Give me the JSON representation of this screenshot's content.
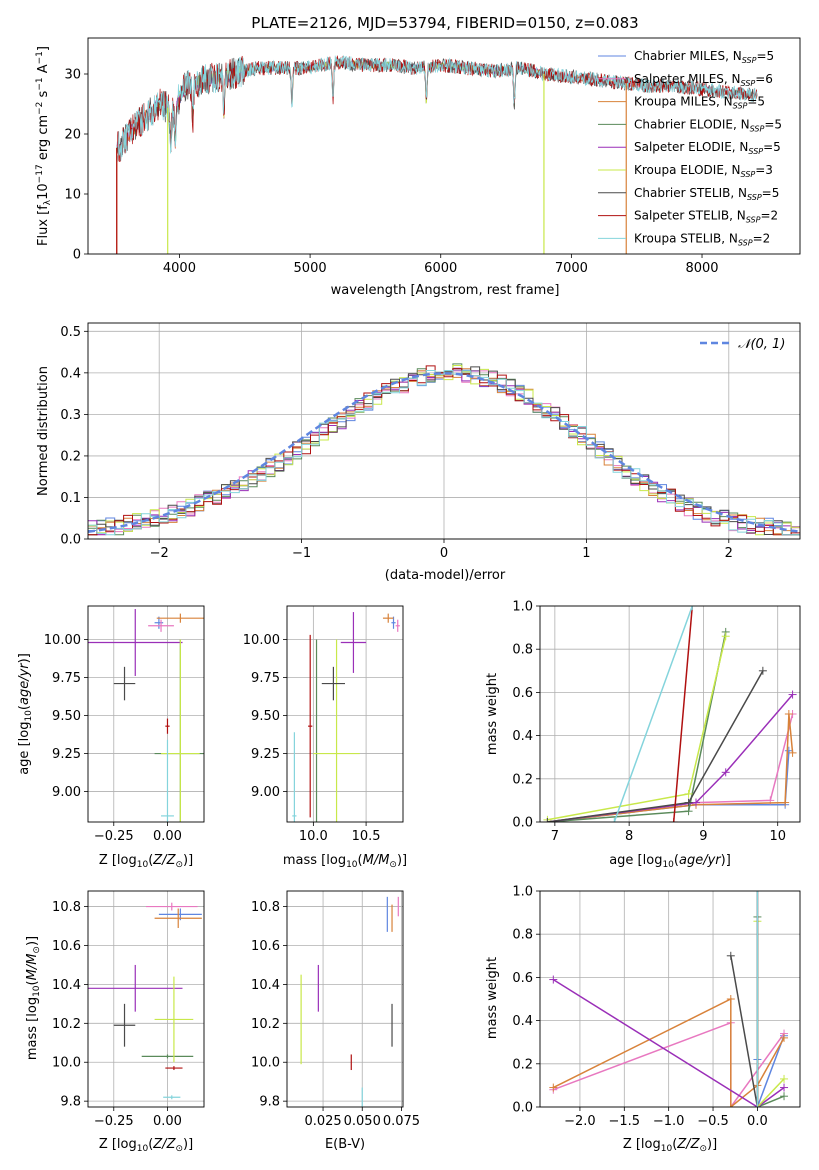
{
  "figure_title": "PLATE=2126, MJD=53794, FIBERID=0150, z=0.083",
  "colors": {
    "Chabrier MILES": "#5f86e0",
    "Salpeter MILES": "#e878c0",
    "Kroupa MILES": "#d8823a",
    "Chabrier ELODIE": "#5a8a5a",
    "Salpeter ELODIE": "#9a2fb8",
    "Kroupa ELODIE": "#c8e84a",
    "Chabrier STELIB": "#4a4a4a",
    "Salpeter STELIB": "#b01010",
    "Kroupa STELIB": "#84d4dc"
  },
  "chart_data": [
    {
      "id": "spectrum",
      "type": "line",
      "xlabel": "wavelength [Angstrom, rest frame]",
      "ylabel": "Flux [f_λ 10^-17 erg cm^-2 s^-1 A^-1]",
      "xlim": [
        3300,
        8750
      ],
      "ylim": [
        0,
        36
      ],
      "xticks": [
        4000,
        5000,
        6000,
        7000,
        8000
      ],
      "yticks": [
        0,
        10,
        20,
        30
      ],
      "legend_position": "right",
      "legend": [
        {
          "name": "Chabrier MILES",
          "nssp": "5"
        },
        {
          "name": "Salpeter MILES",
          "nssp": "6"
        },
        {
          "name": "Kroupa MILES",
          "nssp": "5"
        },
        {
          "name": "Chabrier ELODIE",
          "nssp": "5"
        },
        {
          "name": "Salpeter ELODIE",
          "nssp": "5"
        },
        {
          "name": "Kroupa ELODIE",
          "nssp": "3"
        },
        {
          "name": "Chabrier STELIB",
          "nssp": "5"
        },
        {
          "name": "Salpeter STELIB",
          "nssp": "2"
        },
        {
          "name": "Kroupa STELIB",
          "nssp": "2"
        }
      ],
      "series": {
        "x": [
          3550,
          3650,
          3750,
          3850,
          3950,
          4050,
          4200,
          4400,
          4600,
          4800,
          5000,
          5200,
          5400,
          5600,
          5800,
          6000,
          6200,
          6400,
          6600,
          6800,
          7000,
          7200,
          7400,
          7600,
          7800,
          8000,
          8200,
          8400
        ],
        "y": [
          18,
          21,
          23,
          25,
          24,
          28,
          29,
          30,
          31,
          31,
          31,
          32,
          31.5,
          31.5,
          31,
          31.5,
          31,
          30.5,
          31,
          30,
          29.5,
          29,
          28.5,
          28,
          28,
          27.5,
          27,
          26.5
        ]
      },
      "absorption_lines": [
        3933,
        3968,
        4102,
        4340,
        4861,
        5175,
        5890,
        6563
      ],
      "edge_drops": [
        {
          "series": "Kroupa MILES",
          "x": 3520
        },
        {
          "series": "Kroupa MILES",
          "x": 7420
        },
        {
          "series": "Kroupa ELODIE",
          "x": 3910
        },
        {
          "series": "Kroupa ELODIE",
          "x": 6790
        },
        {
          "series": "Salpeter STELIB",
          "x": 3520
        }
      ]
    },
    {
      "id": "residuals",
      "type": "line",
      "xlabel": "(data-model)/error",
      "ylabel": "Normed distribution",
      "xlim": [
        -2.5,
        2.5
      ],
      "ylim": [
        0,
        0.52
      ],
      "xticks": [
        -2,
        -1,
        0,
        1,
        2
      ],
      "yticks": [
        0.0,
        0.1,
        0.2,
        0.3,
        0.4,
        0.5
      ],
      "grid": true,
      "legend_position": "top-right",
      "legend": [
        "𝒩(0, 1)"
      ],
      "bin_width": 0.1,
      "bins_start": -2.5,
      "step_shape": [
        0.025,
        0.028,
        0.032,
        0.036,
        0.04,
        0.045,
        0.05,
        0.056,
        0.063,
        0.07,
        0.078,
        0.087,
        0.096,
        0.106,
        0.117,
        0.128,
        0.14,
        0.153,
        0.167,
        0.181,
        0.195,
        0.21,
        0.226,
        0.242,
        0.258,
        0.275,
        0.292,
        0.309,
        0.326,
        0.343,
        0.36,
        0.375,
        0.39,
        0.402,
        0.414,
        0.425,
        0.434,
        0.442,
        0.448,
        0.452,
        0.454,
        0.455,
        0.452,
        0.448,
        0.442,
        0.434,
        0.424,
        0.413,
        0.4,
        0.386,
        0.371,
        0.355,
        0.338,
        0.32,
        0.302,
        0.283,
        0.264,
        0.245,
        0.226,
        0.207,
        0.189,
        0.172,
        0.155,
        0.14,
        0.125,
        0.112,
        0.099,
        0.088,
        0.078,
        0.069,
        0.061,
        0.054,
        0.048,
        0.043,
        0.039,
        0.035,
        0.032,
        0.03,
        0.028,
        0.027
      ],
      "normal_curve": {
        "mean": 0,
        "sigma": 1
      }
    },
    {
      "id": "age-vs-Z",
      "type": "scatter",
      "xlabel": "Z [log10(Z/Z⊙)]",
      "ylabel": "age  [log10(age/yr)]",
      "xlim": [
        -0.37,
        0.17
      ],
      "ylim": [
        8.8,
        10.22
      ],
      "xticks": [
        -0.25,
        0.0
      ],
      "xtick_labels": [
        "−0.25",
        "0.00"
      ],
      "yticks": [
        9.0,
        9.25,
        9.5,
        9.75,
        10.0
      ],
      "ytick_labels": [
        "9.00",
        "9.25",
        "9.50",
        "9.75",
        "10.00"
      ],
      "grid": true,
      "points": [
        {
          "series": "Chabrier MILES",
          "x": -0.04,
          "y": 10.11,
          "xerr": 0.02,
          "yerr": 0.04
        },
        {
          "series": "Salpeter MILES",
          "x": -0.03,
          "y": 10.09,
          "xerr": 0.06,
          "yerr": 0.04
        },
        {
          "series": "Kroupa MILES",
          "x": 0.06,
          "y": 10.14,
          "xerr": 0.11,
          "yerr": 0.03
        },
        {
          "series": "Chabrier ELODIE",
          "x": 0.06,
          "y": 9.25,
          "xerr": 0.12,
          "yerr": 0.75
        },
        {
          "series": "Salpeter ELODIE",
          "x": -0.15,
          "y": 9.98,
          "xerr": 0.22,
          "yerr": 0.22
        },
        {
          "series": "Kroupa ELODIE",
          "x": 0.06,
          "y": 9.25,
          "xerr": 0.09,
          "yerr": 0.75
        },
        {
          "series": "Chabrier STELIB",
          "x": -0.2,
          "y": 9.71,
          "xerr": 0.05,
          "yerr": 0.11
        },
        {
          "series": "Salpeter STELIB",
          "x": 0.0,
          "y": 9.43,
          "xerr": 0.01,
          "yerr": 0.05
        },
        {
          "series": "Kroupa STELIB",
          "x": 0.0,
          "y": 8.84,
          "xerr": 0.03,
          "yerr": 0.5
        }
      ]
    },
    {
      "id": "age-vs-mass",
      "type": "scatter",
      "xlabel": "mass [log10(M/M⊙)]",
      "xlim": [
        9.75,
        10.85
      ],
      "ylim": [
        8.8,
        10.22
      ],
      "xticks": [
        10.0,
        10.5
      ],
      "xtick_labels": [
        "10.0",
        "10.5"
      ],
      "yticks": [
        9.0,
        9.25,
        9.5,
        9.75,
        10.0
      ],
      "ytick_labels": [
        "9.00",
        "9.25",
        "9.50",
        "9.75",
        "10.00"
      ],
      "grid": true,
      "points": [
        {
          "series": "Chabrier MILES",
          "x": 10.76,
          "y": 10.11,
          "xerr": 0.02,
          "yerr": 0.04
        },
        {
          "series": "Salpeter MILES",
          "x": 10.8,
          "y": 10.09,
          "xerr": 0.02,
          "yerr": 0.04
        },
        {
          "series": "Kroupa MILES",
          "x": 10.71,
          "y": 10.14,
          "xerr": 0.05,
          "yerr": 0.03
        },
        {
          "series": "Chabrier ELODIE",
          "x": 10.03,
          "y": 9.25,
          "xerr": 0.01,
          "yerr": 0.75
        },
        {
          "series": "Salpeter ELODIE",
          "x": 10.38,
          "y": 9.98,
          "xerr": 0.12,
          "yerr": 0.2
        },
        {
          "series": "Kroupa ELODIE",
          "x": 10.22,
          "y": 9.25,
          "xerr": 0.22,
          "yerr": 0.75
        },
        {
          "series": "Chabrier STELIB",
          "x": 10.19,
          "y": 9.71,
          "xerr": 0.11,
          "yerr": 0.11
        },
        {
          "series": "Salpeter STELIB",
          "x": 9.97,
          "y": 9.43,
          "xerr": 0.02,
          "yerr": 0.6
        },
        {
          "series": "Kroupa STELIB",
          "x": 9.82,
          "y": 8.84,
          "xerr": 0.02,
          "yerr": 0.55
        }
      ]
    },
    {
      "id": "weight-vs-age",
      "type": "line",
      "xlabel": "age  [log10(age/yr)]",
      "ylabel": "mass weight",
      "xlim": [
        6.8,
        10.3
      ],
      "ylim": [
        0,
        1
      ],
      "xticks": [
        7,
        8,
        9,
        10
      ],
      "yticks": [
        0.0,
        0.2,
        0.4,
        0.6,
        0.8,
        1.0
      ],
      "grid": true,
      "series": [
        {
          "series": "Chabrier MILES",
          "x": [
            6.9,
            8.9,
            10.1,
            10.15
          ],
          "y": [
            0.0,
            0.08,
            0.08,
            0.33
          ]
        },
        {
          "series": "Salpeter MILES",
          "x": [
            6.9,
            8.9,
            9.9,
            10.2
          ],
          "y": [
            0.0,
            0.09,
            0.1,
            0.5
          ]
        },
        {
          "series": "Kroupa MILES",
          "x": [
            6.9,
            8.9,
            10.1,
            10.15,
            10.2
          ],
          "y": [
            0.0,
            0.08,
            0.09,
            0.5,
            0.32
          ]
        },
        {
          "series": "Chabrier ELODIE",
          "x": [
            6.9,
            8.8,
            9.3
          ],
          "y": [
            0.0,
            0.05,
            0.88
          ]
        },
        {
          "series": "Salpeter ELODIE",
          "x": [
            6.9,
            8.9,
            9.3,
            10.2
          ],
          "y": [
            0.0,
            0.09,
            0.23,
            0.59
          ]
        },
        {
          "series": "Kroupa ELODIE",
          "x": [
            6.9,
            8.8,
            9.3
          ],
          "y": [
            0.01,
            0.13,
            0.86
          ]
        },
        {
          "series": "Chabrier STELIB",
          "x": [
            6.9,
            8.8,
            9.8
          ],
          "y": [
            0.0,
            0.09,
            0.7
          ]
        },
        {
          "series": "Salpeter STELIB",
          "x": [
            8.6,
            8.85
          ],
          "y": [
            0.0,
            1.0
          ]
        },
        {
          "series": "Kroupa STELIB",
          "x": [
            7.8,
            8.85
          ],
          "y": [
            0.0,
            1.0
          ]
        }
      ]
    },
    {
      "id": "mass-vs-Z",
      "type": "scatter",
      "xlabel": "Z [log10(Z/Z⊙)]",
      "ylabel": "mass [log10(M/M⊙)]",
      "xlim": [
        -0.37,
        0.17
      ],
      "ylim": [
        9.77,
        10.88
      ],
      "xticks": [
        -0.25,
        0.0
      ],
      "xtick_labels": [
        "−0.25",
        "0.00"
      ],
      "yticks": [
        9.8,
        10.0,
        10.2,
        10.4,
        10.6,
        10.8
      ],
      "ytick_labels": [
        "9.8",
        "10.0",
        "10.2",
        "10.4",
        "10.6",
        "10.8"
      ],
      "grid": true,
      "points": [
        {
          "series": "Chabrier MILES",
          "x": 0.06,
          "y": 10.76,
          "xerr": 0.1,
          "yerr": 0.03
        },
        {
          "series": "Salpeter MILES",
          "x": 0.02,
          "y": 10.8,
          "xerr": 0.12,
          "yerr": 0.02
        },
        {
          "series": "Kroupa MILES",
          "x": 0.05,
          "y": 10.74,
          "xerr": 0.11,
          "yerr": 0.05
        },
        {
          "series": "Chabrier ELODIE",
          "x": 0.0,
          "y": 10.03,
          "xerr": 0.12,
          "yerr": 0.01
        },
        {
          "series": "Salpeter ELODIE",
          "x": -0.15,
          "y": 10.38,
          "xerr": 0.22,
          "yerr": 0.12
        },
        {
          "series": "Kroupa ELODIE",
          "x": 0.03,
          "y": 10.22,
          "xerr": 0.09,
          "yerr": 0.22
        },
        {
          "series": "Chabrier STELIB",
          "x": -0.2,
          "y": 10.19,
          "xerr": 0.05,
          "yerr": 0.11
        },
        {
          "series": "Salpeter STELIB",
          "x": 0.03,
          "y": 9.97,
          "xerr": 0.04,
          "yerr": 0.01
        },
        {
          "series": "Kroupa STELIB",
          "x": 0.02,
          "y": 9.82,
          "xerr": 0.04,
          "yerr": 0.01
        }
      ]
    },
    {
      "id": "mass-vs-ebv",
      "type": "scatter",
      "xlabel": "E(B-V)",
      "xlim": [
        0.002,
        0.076
      ],
      "ylim": [
        9.77,
        10.88
      ],
      "xticks": [
        0.025,
        0.05,
        0.075
      ],
      "xtick_labels": [
        "0.025",
        "0.050",
        "0.075"
      ],
      "yticks": [
        9.8,
        10.0,
        10.2,
        10.4,
        10.6,
        10.8
      ],
      "ytick_labels": [
        "9.8",
        "10.0",
        "10.2",
        "10.4",
        "10.6",
        "10.8"
      ],
      "grid": true,
      "points": [
        {
          "series": "Chabrier MILES",
          "x": 0.066,
          "y": 10.76,
          "xerr": 0,
          "yerr": 0.09
        },
        {
          "series": "Salpeter MILES",
          "x": 0.073,
          "y": 10.8,
          "xerr": 0,
          "yerr": 0.05
        },
        {
          "series": "Kroupa MILES",
          "x": 0.069,
          "y": 10.74,
          "xerr": 0,
          "yerr": 0.07
        },
        {
          "series": "Salpeter ELODIE",
          "x": 0.022,
          "y": 10.38,
          "xerr": 0,
          "yerr": 0.12
        },
        {
          "series": "Kroupa ELODIE",
          "x": 0.011,
          "y": 10.22,
          "xerr": 0,
          "yerr": 0.23
        },
        {
          "series": "Chabrier STELIB",
          "x": 0.069,
          "y": 10.19,
          "xerr": 0,
          "yerr": 0.11
        },
        {
          "series": "Salpeter STELIB",
          "x": 0.043,
          "y": 10.0,
          "xerr": 0,
          "yerr": 0.04
        },
        {
          "series": "Kroupa STELIB",
          "x": 0.05,
          "y": 9.82,
          "xerr": 0,
          "yerr": 0.05
        }
      ]
    },
    {
      "id": "weight-vs-Z",
      "type": "line",
      "xlabel": "Z [log10(Z/Z⊙)]",
      "ylabel": "mass weight",
      "xlim": [
        -2.45,
        0.48
      ],
      "ylim": [
        0,
        1
      ],
      "xticks": [
        -2.0,
        -1.5,
        -1.0,
        -0.5,
        0.0
      ],
      "xtick_labels": [
        "−2.0",
        "−1.5",
        "−1.0",
        "−0.5",
        "0.0"
      ],
      "yticks": [
        0.0,
        0.2,
        0.4,
        0.6,
        0.8,
        1.0
      ],
      "grid": true,
      "series": [
        {
          "series": "Chabrier MILES",
          "x": [
            0.0,
            0.0,
            0.3
          ],
          "y": [
            0.22,
            0.0,
            0.33
          ]
        },
        {
          "series": "Salpeter MILES",
          "x": [
            -2.3,
            -0.3,
            -0.3,
            0.3
          ],
          "y": [
            0.08,
            0.39,
            0.0,
            0.34
          ]
        },
        {
          "series": "Kroupa MILES",
          "x": [
            -2.3,
            -0.3,
            -0.3,
            0.0,
            0.3
          ],
          "y": [
            0.09,
            0.5,
            0.0,
            0.1,
            0.32
          ]
        },
        {
          "series": "Chabrier ELODIE",
          "x": [
            0.0,
            0.0,
            0.3
          ],
          "y": [
            0.88,
            0.0,
            0.05
          ]
        },
        {
          "series": "Salpeter ELODIE",
          "x": [
            -2.3,
            0.0,
            0.3
          ],
          "y": [
            0.59,
            0.0,
            0.09
          ]
        },
        {
          "series": "Kroupa ELODIE",
          "x": [
            0.0,
            0.0,
            0.3
          ],
          "y": [
            0.86,
            0.0,
            0.13
          ]
        },
        {
          "series": "Chabrier STELIB",
          "x": [
            -0.3,
            0.0,
            0.0
          ],
          "y": [
            0.7,
            0.0,
            1.0
          ]
        },
        {
          "series": "Salpeter STELIB",
          "x": [
            0.0,
            0.0
          ],
          "y": [
            0.0,
            1.0
          ]
        },
        {
          "series": "Kroupa STELIB",
          "x": [
            0.0,
            0.0
          ],
          "y": [
            0.0,
            1.0
          ]
        }
      ]
    }
  ]
}
